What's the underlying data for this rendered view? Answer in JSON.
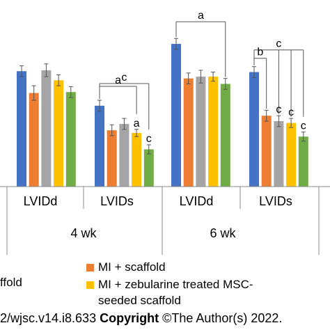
{
  "chart_data": {
    "type": "bar",
    "groups": [
      {
        "label": "LVIDd",
        "period": "4 wk"
      },
      {
        "label": "LVIDs",
        "period": "4 wk"
      },
      {
        "label": "LVIDd",
        "period": "6 wk"
      },
      {
        "label": "LVIDs",
        "period": "6 wk"
      }
    ],
    "periods": [
      "4 wk",
      "6 wk"
    ],
    "series": [
      {
        "name": "",
        "color": "#4472C4",
        "values": [
          6.35,
          4.45,
          7.85,
          6.3
        ],
        "errors": [
          0.3,
          0.3,
          0.3,
          0.3
        ]
      },
      {
        "name": "MI + scaffold",
        "color": "#ED7D31",
        "values": [
          5.15,
          3.1,
          5.95,
          3.9
        ],
        "errors": [
          0.4,
          0.3,
          0.3,
          0.3
        ]
      },
      {
        "name": "",
        "color": "#A5A5A5",
        "values": [
          6.4,
          3.45,
          6.05,
          3.6
        ],
        "errors": [
          0.35,
          0.3,
          0.35,
          0.3
        ]
      },
      {
        "name": "MI + zebularine treated MSC-seeded scaffold",
        "color": "#FFC000",
        "values": [
          5.85,
          2.95,
          6.05,
          3.5
        ],
        "errors": [
          0.3,
          0.2,
          0.25,
          0.25
        ]
      },
      {
        "name": "",
        "color": "#70AD47",
        "values": [
          5.2,
          2.05,
          5.65,
          2.75
        ],
        "errors": [
          0.3,
          0.25,
          0.3,
          0.25
        ]
      }
    ],
    "ylim": [
      0,
      9.5
    ],
    "annotations": [
      {
        "letter": "c",
        "group": 1,
        "type": "bracket",
        "from": 0,
        "to": [
          4
        ]
      },
      {
        "letter": "a",
        "group": 1,
        "type": "bracket",
        "from": 0,
        "to": [
          3
        ]
      },
      {
        "letter": "a",
        "group": 1,
        "type": "label",
        "series": 3
      },
      {
        "letter": "c",
        "group": 1,
        "type": "label",
        "series": 4
      },
      {
        "letter": "a",
        "group": 2,
        "type": "bracket",
        "from": 0,
        "to": [
          4
        ]
      },
      {
        "letter": "c",
        "group": 3,
        "type": "bracket",
        "from": 0,
        "to": [
          2,
          3,
          4
        ]
      },
      {
        "letter": "b",
        "group": 3,
        "type": "bracket",
        "from": 0,
        "to": [
          1
        ]
      },
      {
        "letter": "c",
        "group": 3,
        "type": "label",
        "series": 2
      },
      {
        "letter": "c",
        "group": 3,
        "type": "label",
        "series": 3
      },
      {
        "letter": "c",
        "group": 3,
        "type": "label",
        "series": 4
      }
    ]
  },
  "legend": {
    "items": [
      {
        "label": "MI + scaffold",
        "color": "#ED7D31"
      },
      {
        "label": "MI + zebularine treated MSC-",
        "label_line2": "seeded scaffold",
        "color": "#FFC000"
      }
    ],
    "cut_label": "ffold"
  },
  "footer": {
    "doi_text": "2/wjsc.v14.i8.633 ",
    "copyright_bold": "Copyright",
    "copyright_rest": " ©The Author(s) 2022."
  }
}
